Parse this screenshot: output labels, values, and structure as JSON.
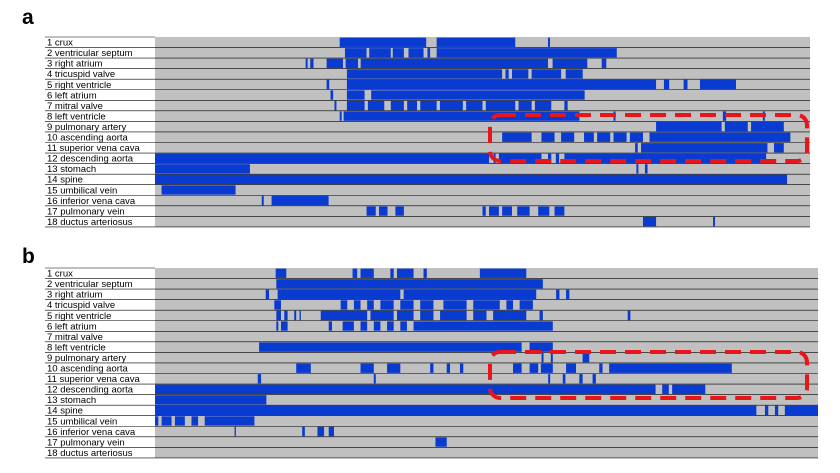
{
  "panel_letters": {
    "a": "a",
    "b": "b"
  },
  "colors": {
    "gray": "#c0c0c0",
    "blue": "#0a3bd0",
    "red_box": "#e8151b",
    "label_bg": "#ffffff",
    "line": "#000000"
  },
  "chart_data": [
    {
      "panel": "a",
      "type": "timeline-heatmap",
      "x_range": [
        0,
        1
      ],
      "rows": [
        {
          "label": "1 crux",
          "on": [
            [
              0.282,
              0.414
            ],
            [
              0.43,
              0.55
            ],
            [
              0.6,
              0.603
            ]
          ]
        },
        {
          "label": "2 ventricular septum",
          "on": [
            [
              0.29,
              0.323
            ],
            [
              0.327,
              0.36
            ],
            [
              0.363,
              0.38
            ],
            [
              0.387,
              0.41
            ],
            [
              0.416,
              0.42
            ],
            [
              0.43,
              0.705
            ]
          ]
        },
        {
          "label": "3 right atrium",
          "on": [
            [
              0.23,
              0.233
            ],
            [
              0.237,
              0.242
            ],
            [
              0.262,
              0.287
            ],
            [
              0.291,
              0.31
            ],
            [
              0.314,
              0.6
            ],
            [
              0.607,
              0.66
            ],
            [
              0.682,
              0.689
            ]
          ]
        },
        {
          "label": "4 tricuspid valve",
          "on": [
            [
              0.293,
              0.53
            ],
            [
              0.535,
              0.54
            ],
            [
              0.545,
              0.57
            ],
            [
              0.575,
              0.62
            ],
            [
              0.627,
              0.653
            ]
          ]
        },
        {
          "label": "5 right ventricle",
          "on": [
            [
              0.262,
              0.266
            ],
            [
              0.293,
              0.765
            ],
            [
              0.777,
              0.785
            ],
            [
              0.807,
              0.813
            ],
            [
              0.832,
              0.887
            ]
          ]
        },
        {
          "label": "6 left atrium",
          "on": [
            [
              0.268,
              0.272
            ],
            [
              0.293,
              0.32
            ],
            [
              0.33,
              0.656
            ]
          ]
        },
        {
          "label": "7 mitral valve",
          "on": [
            [
              0.274,
              0.277
            ],
            [
              0.293,
              0.32
            ],
            [
              0.325,
              0.35
            ],
            [
              0.36,
              0.38
            ],
            [
              0.385,
              0.4
            ],
            [
              0.405,
              0.43
            ],
            [
              0.435,
              0.47
            ],
            [
              0.475,
              0.5
            ],
            [
              0.505,
              0.55
            ],
            [
              0.555,
              0.575
            ],
            [
              0.58,
              0.605
            ],
            [
              0.625,
              0.63
            ]
          ]
        },
        {
          "label": "8 left ventricle",
          "on": [
            [
              0.282,
              0.285
            ],
            [
              0.288,
              0.648
            ],
            [
              0.7,
              0.703
            ],
            [
              0.867,
              0.872
            ],
            [
              0.928,
              0.931
            ]
          ]
        },
        {
          "label": "9 pulmonary artery",
          "on": [
            [
              0.765,
              0.865
            ],
            [
              0.87,
              0.905
            ],
            [
              0.91,
              0.96
            ]
          ]
        },
        {
          "label": "10 ascending aorta",
          "on": [
            [
              0.53,
              0.575
            ],
            [
              0.59,
              0.61
            ],
            [
              0.62,
              0.64
            ],
            [
              0.655,
              0.67
            ],
            [
              0.675,
              0.695
            ],
            [
              0.7,
              0.72
            ],
            [
              0.725,
              0.745
            ],
            [
              0.755,
              0.97
            ]
          ]
        },
        {
          "label": "11 superior vena cava",
          "on": [
            [
              0.733,
              0.737
            ],
            [
              0.742,
              0.935
            ],
            [
              0.945,
              0.96
            ]
          ]
        },
        {
          "label": "12 descending aorta",
          "on": [
            [
              0,
              0.51
            ],
            [
              0.517,
              0.52
            ],
            [
              0.525,
              0.59
            ],
            [
              0.6,
              0.605
            ],
            [
              0.612,
              0.617
            ],
            [
              0.625,
              0.933
            ]
          ]
        },
        {
          "label": "13 stomach",
          "on": [
            [
              0,
              0.145
            ],
            [
              0.735,
              0.738
            ],
            [
              0.748,
              0.752
            ]
          ]
        },
        {
          "label": "14 spine",
          "on": [
            [
              0,
              0.965
            ]
          ]
        },
        {
          "label": "15 umbilical vein",
          "on": [
            [
              0.01,
              0.123
            ]
          ]
        },
        {
          "label": "16 inferior vena cava",
          "on": [
            [
              0.163,
              0.166
            ],
            [
              0.178,
              0.265
            ]
          ]
        },
        {
          "label": "17 pulmonary vein",
          "on": [
            [
              0.323,
              0.337
            ],
            [
              0.342,
              0.355
            ],
            [
              0.367,
              0.38
            ],
            [
              0.5,
              0.505
            ],
            [
              0.51,
              0.525
            ],
            [
              0.53,
              0.545
            ],
            [
              0.553,
              0.572
            ],
            [
              0.585,
              0.602
            ],
            [
              0.61,
              0.625
            ]
          ]
        },
        {
          "label": "18 ductus arteriosus",
          "on": [
            [
              0.745,
              0.765
            ],
            [
              0.852,
              0.855
            ]
          ]
        }
      ]
    },
    {
      "panel": "b",
      "type": "timeline-heatmap",
      "x_range": [
        0,
        1
      ],
      "rows": [
        {
          "label": "1 crux",
          "on": [
            [
              0.182,
              0.198
            ],
            [
              0.298,
              0.305
            ],
            [
              0.31,
              0.33
            ],
            [
              0.355,
              0.36
            ],
            [
              0.365,
              0.39
            ],
            [
              0.405,
              0.41
            ],
            [
              0.49,
              0.56
            ]
          ]
        },
        {
          "label": "2 ventricular septum",
          "on": [
            [
              0.183,
              0.585
            ]
          ]
        },
        {
          "label": "3 right atrium",
          "on": [
            [
              0.167,
              0.172
            ],
            [
              0.185,
              0.19
            ],
            [
              0.19,
              0.37
            ],
            [
              0.375,
              0.575
            ],
            [
              0.605,
              0.61
            ],
            [
              0.62,
              0.625
            ]
          ]
        },
        {
          "label": "4 tricuspid valve",
          "on": [
            [
              0.18,
              0.19
            ],
            [
              0.28,
              0.29
            ],
            [
              0.3,
              0.31
            ],
            [
              0.32,
              0.33
            ],
            [
              0.34,
              0.36
            ],
            [
              0.37,
              0.39
            ],
            [
              0.4,
              0.42
            ],
            [
              0.435,
              0.47
            ],
            [
              0.48,
              0.52
            ],
            [
              0.53,
              0.54
            ],
            [
              0.55,
              0.57
            ]
          ]
        },
        {
          "label": "5 right ventricle",
          "on": [
            [
              0.183,
              0.19
            ],
            [
              0.195,
              0.2
            ],
            [
              0.21,
              0.213
            ],
            [
              0.218,
              0.22
            ],
            [
              0.25,
              0.32
            ],
            [
              0.325,
              0.36
            ],
            [
              0.365,
              0.39
            ],
            [
              0.4,
              0.42
            ],
            [
              0.43,
              0.47
            ],
            [
              0.48,
              0.5
            ],
            [
              0.51,
              0.56
            ],
            [
              0.58,
              0.585
            ],
            [
              0.713,
              0.717
            ]
          ]
        },
        {
          "label": "6 left atrium",
          "on": [
            [
              0.183,
              0.186
            ],
            [
              0.19,
              0.2
            ],
            [
              0.262,
              0.267
            ],
            [
              0.283,
              0.3
            ],
            [
              0.31,
              0.32
            ],
            [
              0.33,
              0.34
            ],
            [
              0.35,
              0.36
            ],
            [
              0.37,
              0.38
            ],
            [
              0.39,
              0.6
            ]
          ]
        },
        {
          "label": "7 mitral valve",
          "on": []
        },
        {
          "label": "8 left ventricle",
          "on": [
            [
              0.157,
              0.553
            ],
            [
              0.565,
              0.6
            ]
          ]
        },
        {
          "label": "9 pulmonary artery",
          "on": [
            [
              0.583,
              0.586
            ],
            [
              0.597,
              0.6
            ],
            [
              0.645,
              0.655
            ]
          ]
        },
        {
          "label": "10 ascending aorta",
          "on": [
            [
              0.213,
              0.235
            ],
            [
              0.31,
              0.33
            ],
            [
              0.35,
              0.37
            ],
            [
              0.415,
              0.42
            ],
            [
              0.44,
              0.445
            ],
            [
              0.46,
              0.465
            ],
            [
              0.54,
              0.553
            ],
            [
              0.565,
              0.578
            ],
            [
              0.582,
              0.6
            ],
            [
              0.62,
              0.635
            ],
            [
              0.67,
              0.675
            ],
            [
              0.685,
              0.87
            ]
          ]
        },
        {
          "label": "11 superior vena cava",
          "on": [
            [
              0.155,
              0.16
            ],
            [
              0.33,
              0.333
            ],
            [
              0.593,
              0.596
            ],
            [
              0.615,
              0.619
            ],
            [
              0.64,
              0.645
            ],
            [
              0.66,
              0.665
            ]
          ]
        },
        {
          "label": "12 descending aorta",
          "on": [
            [
              0,
              0.755
            ],
            [
              0.765,
              0.775
            ],
            [
              0.78,
              0.83
            ]
          ]
        },
        {
          "label": "13 stomach",
          "on": [
            [
              0,
              0.168
            ]
          ]
        },
        {
          "label": "14 spine",
          "on": [
            [
              0,
              0.907
            ],
            [
              0.92,
              0.925
            ],
            [
              0.935,
              0.94
            ],
            [
              0.95,
              1.0
            ]
          ]
        },
        {
          "label": "15 umbilical vein",
          "on": [
            [
              0,
              0.005
            ],
            [
              0.01,
              0.025
            ],
            [
              0.03,
              0.045
            ],
            [
              0.055,
              0.065
            ],
            [
              0.075,
              0.15
            ]
          ]
        },
        {
          "label": "16 inferior vena cava",
          "on": [
            [
              0.12,
              0.122
            ],
            [
              0.222,
              0.226
            ],
            [
              0.245,
              0.255
            ],
            [
              0.262,
              0.27
            ]
          ]
        },
        {
          "label": "17 pulmonary vein",
          "on": [
            [
              0.423,
              0.44
            ]
          ]
        },
        {
          "label": "18 ductus arteriosus",
          "on": []
        }
      ]
    }
  ]
}
